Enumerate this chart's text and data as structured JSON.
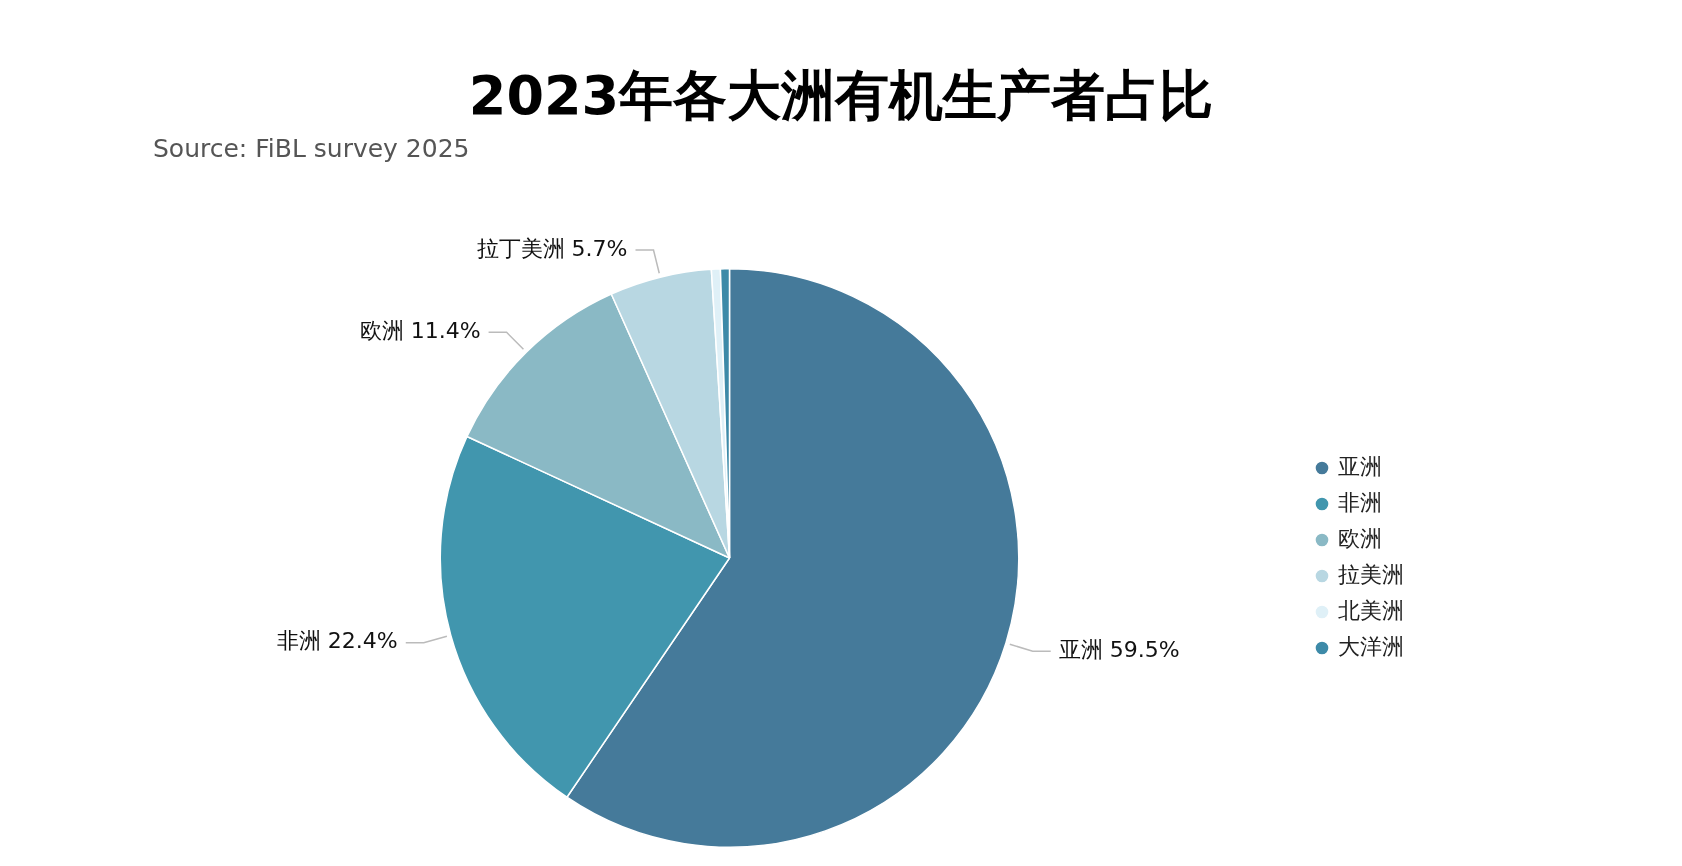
{
  "chart_data": {
    "type": "pie",
    "title": "2023年各大洲有机生产者占比",
    "annotations": [
      "Source: FiBL survey 2025"
    ],
    "categories": [
      "亚洲",
      "非洲",
      "欧洲",
      "拉美洲",
      "北美洲",
      "大洋洲"
    ],
    "values": [
      59.5,
      22.4,
      11.4,
      5.7,
      0.5,
      0.5
    ],
    "colors": [
      "#457a9a",
      "#4196ae",
      "#8ab9c5",
      "#b8d7e2",
      "#dff0f7",
      "#3d8aa8"
    ],
    "value_labels": [
      "亚洲 59.5%",
      "非洲 22.4%",
      "欧洲 11.4%",
      "拉丁美洲 5.7%",
      null,
      null
    ],
    "legend": "right"
  }
}
